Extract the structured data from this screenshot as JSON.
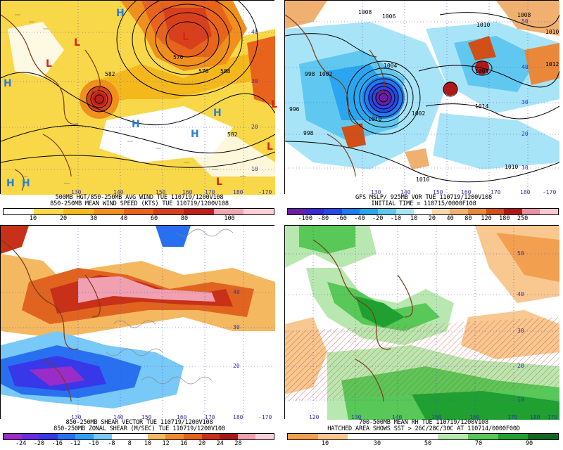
{
  "panels": {
    "p1": {
      "caption1": "500MB HGT/850-250MB AVG WIND TUE 110719/1200V108",
      "caption2": "850-250MB MEAN WIND SPEED (KTS) TUE 110719/1200V108",
      "colorbar_labels": [
        "10",
        "20",
        "30",
        "40",
        "60",
        "80",
        "100"
      ],
      "colorbar_colors": [
        "#ffffff",
        "#f8d848",
        "#f4b81c",
        "#f0901c",
        "#e8641c",
        "#d8401c",
        "#c02018",
        "#f0a8b0",
        "#ffd0d8"
      ],
      "lon_labels": [
        "130",
        "140",
        "150",
        "160",
        "170",
        "180",
        "-170"
      ],
      "lat_labels": [
        "40",
        "30",
        "20",
        "10"
      ],
      "contour_labels": [
        "582",
        "588",
        "576",
        "582",
        "570"
      ]
    },
    "p2": {
      "caption1": "GFS MSLP/ 925MB VOR TUE 110719/1200V108",
      "caption2": "INITIAL TIME = 110715/0000F108",
      "colorbar_labels": [
        "-100",
        "-80",
        "-60",
        "-40",
        "-20",
        "-10",
        "10",
        "20",
        "40",
        "80",
        "120",
        "180",
        "250"
      ],
      "colorbar_colors": [
        "#6a1ea8",
        "#3a2ad0",
        "#2848e8",
        "#1c7cf0",
        "#2aa6f0",
        "#60c8f0",
        "#a8e4f8",
        "#ffffff",
        "#f8d8a8",
        "#f0b070",
        "#e88838",
        "#d05018",
        "#b01818",
        "#e890a0",
        "#f8c8d0"
      ],
      "lon_labels": [
        "130",
        "140",
        "150",
        "160",
        "170",
        "180",
        "-170"
      ],
      "lat_labels": [
        "50",
        "40",
        "30",
        "20",
        "10"
      ],
      "pressure_labels": [
        "1008",
        "1010",
        "1004",
        "1008",
        "1010",
        "1004",
        "998",
        "1002",
        "1014",
        "1010",
        "1010",
        "1006",
        "1012",
        "996",
        "998",
        "1010",
        "1002"
      ]
    },
    "p3": {
      "caption1": "850-250MB SHEAR VECTOR TUE 110719/1200V108",
      "caption2": "850-250MB ZONAL SHEAR (M/SEC) TUE 110719/1200V108",
      "colorbar_labels": [
        "-24",
        "-20",
        "-16",
        "-12",
        "-10",
        "-8",
        "8",
        "10",
        "12",
        "16",
        "20",
        "24",
        "28"
      ],
      "colorbar_colors": [
        "#9a2cc8",
        "#6a2ce0",
        "#3838e8",
        "#2870f0",
        "#30a0f0",
        "#78c8f8",
        "#ffffff",
        "#ffffff",
        "#f4b860",
        "#ec8c30",
        "#e06420",
        "#c83018",
        "#a81818",
        "#f0a0b0",
        "#f8d0d8"
      ],
      "lon_labels": [
        "130",
        "140",
        "150",
        "160",
        "170",
        "180",
        "-170"
      ],
      "lat_labels": [
        "40",
        "30",
        "20"
      ]
    },
    "p4": {
      "caption1": "700-500MB MEAN RH TUE 110719/1200V108",
      "caption2": "HATCHED AREA SHOWS SST > 26C/28C/30C AT 110714/0000F00D",
      "colorbar_labels": [
        "10",
        "30",
        "50",
        "70",
        "90"
      ],
      "colorbar_colors": [
        "#f2a050",
        "#f8c890",
        "#ffffff",
        "#ffffff",
        "#ffffff",
        "#b8e8b0",
        "#58c858",
        "#20a030",
        "#106820"
      ],
      "lon_labels": [
        "120",
        "130",
        "140",
        "150",
        "160",
        "170",
        "180",
        "-170"
      ],
      "lat_labels": [
        "50",
        "40",
        "30",
        "20",
        "10"
      ]
    }
  }
}
